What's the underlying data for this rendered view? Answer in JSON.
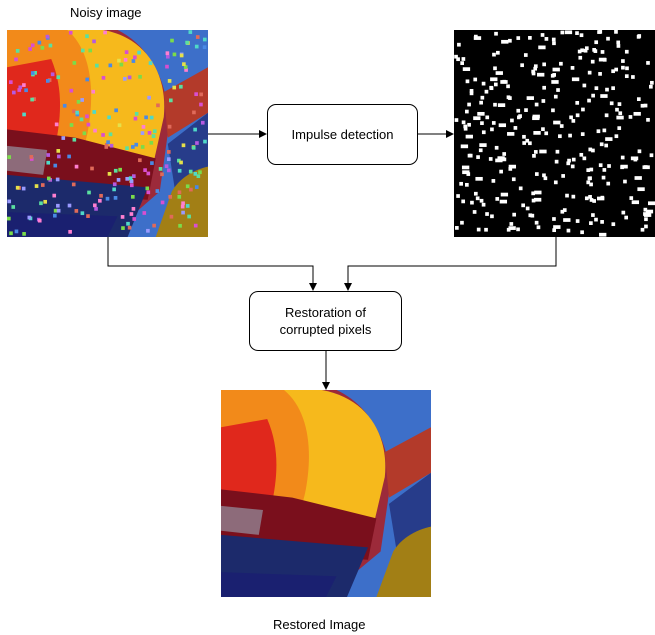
{
  "labels": {
    "noisy_image": "Noisy image",
    "restored_image": "Restored Image"
  },
  "boxes": {
    "impulse_detection": "Impulse detection",
    "restoration_line1": "Restoration of",
    "restoration_line2": "corrupted pixels"
  },
  "images": {
    "noisy": "balloon-photo-with-impulse-noise",
    "mask": "binary-impulse-mask",
    "restored": "restored-balloon-photo"
  },
  "colors": {
    "sky": "#3d6fc9",
    "balloon_yellow": "#f6b91c",
    "balloon_orange": "#f28a1a",
    "balloon_red": "#e0281c",
    "dark_red": "#7a0f1c",
    "navy": "#1c2a6b",
    "olive": "#9b7a12",
    "mask_black": "#000000",
    "mask_white": "#ffffff"
  }
}
